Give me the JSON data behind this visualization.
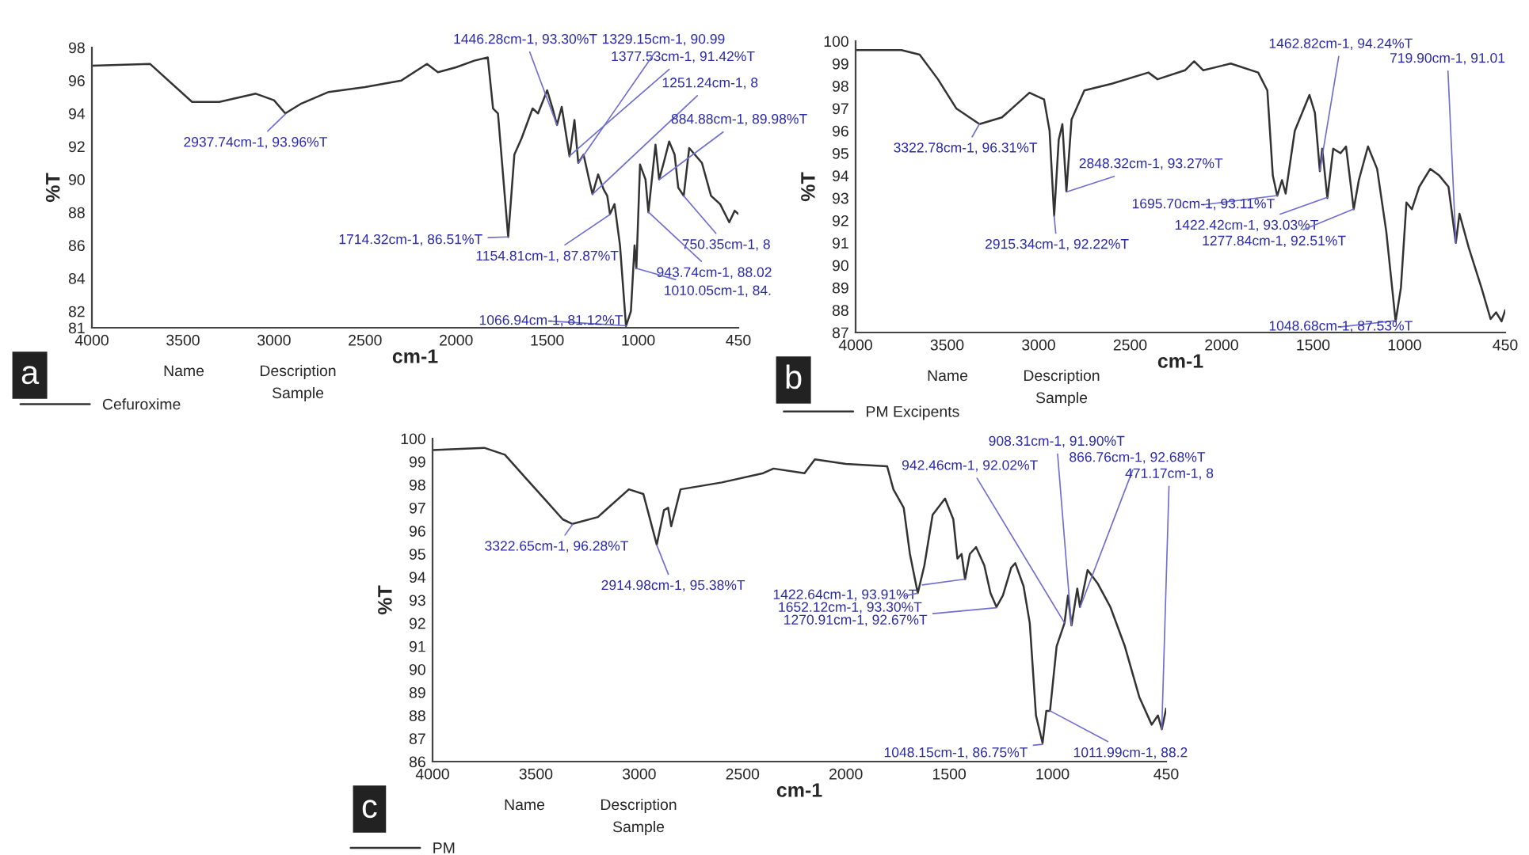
{
  "chart_data": [
    {
      "type": "line",
      "xlabel": "cm-1",
      "ylabel": "%T",
      "xlim": [
        4000,
        450
      ],
      "xticks": [
        4000,
        3500,
        3000,
        2500,
        2000,
        1500,
        1000,
        450
      ],
      "ylim": [
        81,
        98
      ],
      "yticks": [
        81,
        82,
        84,
        86,
        88,
        90,
        92,
        94,
        96,
        98
      ],
      "legend": "bottom left",
      "series": [
        {
          "name": "Cefuroxime",
          "color": "#333333",
          "x": [
            4000,
            3680,
            3450,
            3300,
            3100,
            3000,
            2938,
            2850,
            2700,
            2500,
            2300,
            2160,
            2100,
            2000,
            1900,
            1826,
            1797,
            1770,
            1714,
            1680,
            1640,
            1580,
            1550,
            1500,
            1470,
            1446,
            1420,
            1400,
            1377,
            1350,
            1329,
            1300,
            1270,
            1251,
            1220,
            1190,
            1170,
            1155,
            1130,
            1100,
            1067,
            1040,
            1020,
            1010,
            990,
            960,
            944,
            905,
            885,
            860,
            830,
            800,
            780,
            750,
            720,
            650,
            600,
            550,
            500,
            470,
            450
          ],
          "values": [
            96.9,
            97.0,
            94.7,
            94.7,
            95.2,
            94.8,
            94.0,
            94.6,
            95.3,
            95.6,
            96.0,
            97.0,
            96.5,
            96.8,
            97.2,
            97.4,
            94.3,
            94.0,
            86.5,
            91.5,
            92.5,
            94.3,
            94.0,
            95.4,
            94.3,
            93.3,
            94.4,
            93.0,
            91.4,
            93.6,
            91.0,
            91.5,
            90.0,
            89.1,
            90.3,
            89.4,
            89.0,
            87.9,
            88.5,
            86.0,
            81.1,
            82.0,
            86.0,
            84.6,
            90.9,
            90.0,
            88.0,
            92.1,
            90.0,
            91.0,
            92.3,
            91.5,
            89.5,
            89.0,
            91.9,
            91.0,
            89.0,
            88.5,
            87.4,
            88.1,
            87.9
          ]
        }
      ],
      "annotations": [
        {
          "text": "2937.74cm-1, 93.96%T",
          "x": 2937.74,
          "y": 93.96
        },
        {
          "text": "1714.32cm-1, 86.51%T",
          "x": 1714.32,
          "y": 86.51
        },
        {
          "text": "1154.81cm-1, 87.87%T",
          "x": 1154.81,
          "y": 87.87
        },
        {
          "text": "1446.28cm-1, 93.30%T",
          "x": 1446.28,
          "y": 93.3
        },
        {
          "text": "1377.53cm-1, 91.42%T",
          "x": 1377.53,
          "y": 91.42
        },
        {
          "text": "1329.15cm-1, 90.99",
          "x": 1329.15,
          "y": 90.99
        },
        {
          "text": "1251.24cm-1, 8",
          "x": 1251.24,
          "y": 89.1
        },
        {
          "text": "884.88cm-1, 89.98%T",
          "x": 884.88,
          "y": 89.98
        },
        {
          "text": "750.35cm-1, 8",
          "x": 750.35,
          "y": 89.0
        },
        {
          "text": "943.74cm-1, 88.02",
          "x": 943.74,
          "y": 88.02
        },
        {
          "text": "1010.05cm-1, 84.",
          "x": 1010.05,
          "y": 84.6
        },
        {
          "text": "1066.94cm-1, 81.12%T",
          "x": 1066.94,
          "y": 81.12
        },
        "a",
        "Name",
        "Description",
        "Sample"
      ]
    },
    {
      "type": "line",
      "xlabel": "cm-1",
      "ylabel": "%T",
      "xlim": [
        4000,
        450
      ],
      "xticks": [
        4000,
        3500,
        3000,
        2500,
        2000,
        1500,
        1000,
        450
      ],
      "ylim": [
        87,
        100
      ],
      "yticks": [
        87,
        88,
        89,
        90,
        91,
        92,
        93,
        94,
        95,
        96,
        97,
        98,
        99,
        100
      ],
      "legend": "bottom left",
      "series": [
        {
          "name": "PM Excipents",
          "color": "#333333",
          "x": [
            4000,
            3750,
            3650,
            3550,
            3450,
            3360,
            3323,
            3200,
            3050,
            2970,
            2940,
            2915,
            2890,
            2870,
            2848,
            2820,
            2750,
            2600,
            2400,
            2350,
            2200,
            2150,
            2100,
            2000,
            1950,
            1800,
            1750,
            1720,
            1696,
            1670,
            1650,
            1600,
            1520,
            1490,
            1463,
            1450,
            1422,
            1390,
            1350,
            1320,
            1278,
            1250,
            1200,
            1150,
            1100,
            1049,
            1020,
            990,
            960,
            920,
            860,
            810,
            760,
            720,
            700,
            650,
            580,
            530,
            500,
            470,
            450
          ],
          "values": [
            99.6,
            99.6,
            99.4,
            98.3,
            97.0,
            96.5,
            96.3,
            96.6,
            97.7,
            97.4,
            96.0,
            92.2,
            95.6,
            96.3,
            93.3,
            96.5,
            97.8,
            98.1,
            98.6,
            98.3,
            98.7,
            99.1,
            98.7,
            98.9,
            99.0,
            98.6,
            97.8,
            94.0,
            93.1,
            93.8,
            93.2,
            96.0,
            97.6,
            96.8,
            94.2,
            95.2,
            93.0,
            95.2,
            95.0,
            95.3,
            92.5,
            93.8,
            95.3,
            94.3,
            91.5,
            87.5,
            89.0,
            92.8,
            92.5,
            93.5,
            94.3,
            94.0,
            93.5,
            91.0,
            92.3,
            90.8,
            89.0,
            87.6,
            87.9,
            87.5,
            88.0
          ]
        }
      ],
      "annotations": [
        {
          "text": "1462.82cm-1, 94.24%T",
          "x": 1462.82,
          "y": 94.24
        },
        {
          "text": "719.90cm-1, 91.01",
          "x": 719.9,
          "y": 91.01
        },
        {
          "text": "3322.78cm-1, 96.31%T",
          "x": 3322.78,
          "y": 96.31
        },
        {
          "text": "1695.70cm-1, 93.11%T",
          "x": 1695.7,
          "y": 93.11
        },
        {
          "text": "2848.32cm-1, 93.27%T",
          "x": 2848.32,
          "y": 93.27
        },
        {
          "text": "1422.42cm-1, 93.03%T",
          "x": 1422.42,
          "y": 93.03
        },
        {
          "text": "2915.34cm-1, 92.22%T",
          "x": 2915.34,
          "y": 92.22
        },
        {
          "text": "1277.84cm-1, 92.51%T",
          "x": 1277.84,
          "y": 92.51
        },
        {
          "text": "1048.68cm-1, 87.53%T",
          "x": 1048.68,
          "y": 87.53
        },
        "b",
        "Name",
        "Description",
        "Sample"
      ]
    },
    {
      "type": "line",
      "xlabel": "cm-1",
      "ylabel": "%T",
      "xlim": [
        4000,
        450
      ],
      "xticks": [
        4000,
        3500,
        3000,
        2500,
        2000,
        1500,
        1000,
        450
      ],
      "ylim": [
        86,
        100
      ],
      "yticks": [
        86,
        87,
        88,
        89,
        90,
        91,
        92,
        93,
        94,
        95,
        96,
        97,
        98,
        99,
        100
      ],
      "legend": "bottom left",
      "series": [
        {
          "name": "PM",
          "color": "#333333",
          "x": [
            4000,
            3750,
            3650,
            3550,
            3450,
            3370,
            3323,
            3200,
            3050,
            2980,
            2915,
            2880,
            2860,
            2845,
            2800,
            2600,
            2400,
            2350,
            2200,
            2150,
            2000,
            1800,
            1770,
            1720,
            1690,
            1652,
            1620,
            1580,
            1520,
            1480,
            1460,
            1440,
            1423,
            1400,
            1370,
            1330,
            1300,
            1271,
            1240,
            1200,
            1180,
            1140,
            1110,
            1080,
            1048,
            1030,
            1012,
            980,
            942,
            925,
            908,
            880,
            867,
            830,
            780,
            720,
            650,
            580,
            520,
            490,
            471,
            450
          ],
          "values": [
            99.5,
            99.6,
            99.3,
            98.3,
            97.3,
            96.5,
            96.3,
            96.6,
            97.8,
            97.6,
            95.4,
            96.9,
            97.0,
            96.2,
            97.8,
            98.1,
            98.5,
            98.7,
            98.5,
            99.1,
            98.9,
            98.8,
            97.8,
            97.0,
            95.0,
            93.3,
            94.5,
            96.7,
            97.4,
            96.5,
            94.8,
            95.0,
            93.9,
            95.0,
            95.3,
            94.5,
            93.3,
            92.7,
            93.2,
            94.4,
            94.6,
            93.6,
            92.0,
            88.0,
            86.8,
            88.2,
            88.2,
            91.0,
            92.0,
            93.2,
            91.9,
            93.5,
            92.7,
            94.3,
            93.7,
            92.7,
            91.0,
            88.8,
            87.6,
            88.0,
            87.4,
            88.3
          ]
        }
      ],
      "annotations": [
        {
          "text": "3322.65cm-1, 96.28%T",
          "x": 3322.65,
          "y": 96.28
        },
        {
          "text": "2914.98cm-1, 95.38%T",
          "x": 2914.98,
          "y": 95.38
        },
        {
          "text": "1422.64cm-1, 93.91%T",
          "x": 1422.64,
          "y": 93.91
        },
        {
          "text": "1652.12cm-1, 93.30%T",
          "x": 1652.12,
          "y": 93.3
        },
        {
          "text": "1270.91cm-1, 92.67%T",
          "x": 1270.91,
          "y": 92.67
        },
        {
          "text": "942.46cm-1, 92.02%T",
          "x": 942.46,
          "y": 92.02
        },
        {
          "text": "908.31cm-1, 91.90%T",
          "x": 908.31,
          "y": 91.9
        },
        {
          "text": "866.76cm-1, 92.68%T",
          "x": 866.76,
          "y": 92.68
        },
        {
          "text": "471.17cm-1, 8",
          "x": 471.17,
          "y": 87.4
        },
        {
          "text": "1048.15cm-1, 86.75%T",
          "x": 1048.15,
          "y": 86.75
        },
        {
          "text": "1011.99cm-1, 88.2",
          "x": 1011.99,
          "y": 88.2
        },
        "c",
        "Name",
        "Description",
        "Sample"
      ]
    }
  ]
}
